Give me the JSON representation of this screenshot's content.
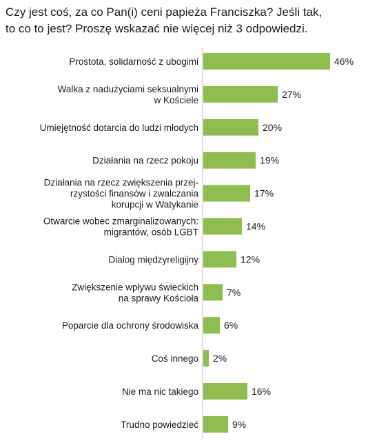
{
  "chart_data": {
    "type": "bar",
    "orientation": "horizontal",
    "title": "Czy jest coś, za co Pan(i) ceni papieża Franciszka? Jeśli tak,\nto co to jest? Proszę wskazać nie więcej niż 3 odpowiedzi.",
    "categories": [
      [
        "Prostota, solidarność z ubogimi"
      ],
      [
        "Walka z nadużyciami seksualnymi",
        "w Kościele"
      ],
      [
        "Umiejętność dotarcia do ludzi młodych"
      ],
      [
        "Działania na rzecz pokoju"
      ],
      [
        "Działania na rzecz zwiększenia przej-",
        "rzystości finansów i zwalczania",
        "korupcji w Watykanie"
      ],
      [
        "Otwarcie wobec zmarginalizowanych:",
        "migrantów, osób LGBT"
      ],
      [
        "Dialog międzyreligijny"
      ],
      [
        "Zwiększenie wpływu świeckich",
        "na sprawy Kościoła"
      ],
      [
        "Poparcie dla ochrony środowiska"
      ],
      [
        "Coś innego"
      ],
      [
        "Nie ma nic takiego"
      ],
      [
        "Trudno powiedzieć"
      ]
    ],
    "values": [
      46,
      27,
      20,
      19,
      17,
      14,
      12,
      7,
      6,
      2,
      16,
      9
    ],
    "value_labels": [
      "46%",
      "27%",
      "20%",
      "19%",
      "17%",
      "14%",
      "12%",
      "7%",
      "6%",
      "2%",
      "16%",
      "9%"
    ],
    "bar_color": "#8fbd4f",
    "xlim": [
      0,
      46
    ],
    "grid": false,
    "legend": "none"
  }
}
